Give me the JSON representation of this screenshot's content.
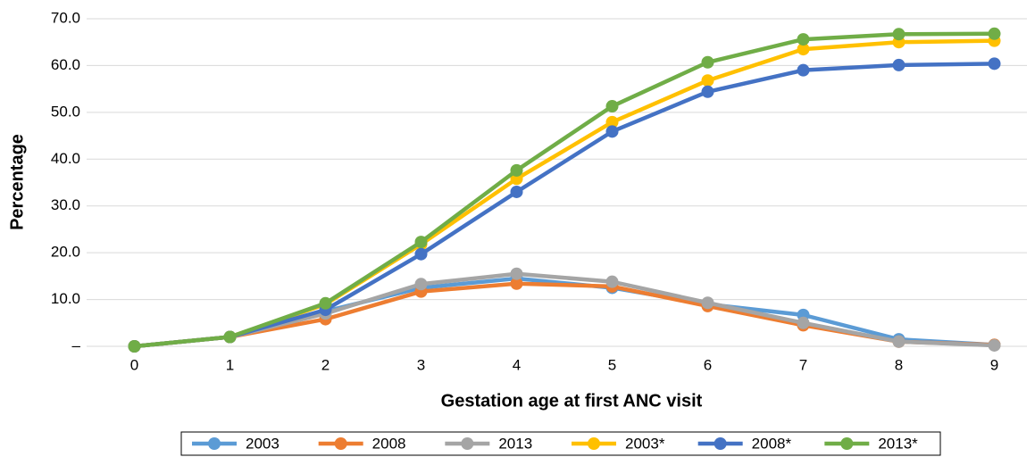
{
  "chart_data": {
    "type": "line",
    "x_label": "Gestation age at first ANC visit",
    "y_label": "Percentage",
    "categories": [
      "0",
      "1",
      "2",
      "3",
      "4",
      "5",
      "6",
      "7",
      "8",
      "9"
    ],
    "series": [
      {
        "name": "2003",
        "color": "#5b9bd5",
        "values": [
          0,
          2.0,
          7.5,
          12.5,
          14.5,
          12.5,
          9.0,
          6.7,
          1.5,
          0.3
        ]
      },
      {
        "name": "2008",
        "color": "#ed7d31",
        "values": [
          0,
          2.0,
          5.8,
          11.7,
          13.4,
          12.8,
          8.6,
          4.5,
          1.0,
          0.3
        ]
      },
      {
        "name": "2013",
        "color": "#a5a5a5",
        "values": [
          0,
          2.0,
          7.0,
          13.3,
          15.5,
          13.8,
          9.3,
          5.0,
          1.0,
          0.2
        ]
      },
      {
        "name": "2003*",
        "color": "#ffc000",
        "values": [
          0,
          2.0,
          9.0,
          21.8,
          35.8,
          47.9,
          56.8,
          63.5,
          65.0,
          65.3
        ]
      },
      {
        "name": "2008*",
        "color": "#4472c4",
        "values": [
          0,
          2.0,
          7.8,
          19.7,
          33.0,
          45.9,
          54.4,
          59.0,
          60.1,
          60.4
        ]
      },
      {
        "name": "2013*",
        "color": "#70ad47",
        "values": [
          0,
          2.0,
          9.2,
          22.3,
          37.6,
          51.3,
          60.7,
          65.6,
          66.7,
          66.8
        ]
      }
    ],
    "ylim": [
      0,
      70
    ],
    "yticks": [
      {
        "value": 0,
        "label": "–"
      },
      {
        "value": 10,
        "label": "10.0"
      },
      {
        "value": 20,
        "label": "20.0"
      },
      {
        "value": 30,
        "label": "30.0"
      },
      {
        "value": 40,
        "label": "40.0"
      },
      {
        "value": 50,
        "label": "50.0"
      },
      {
        "value": 60,
        "label": "60.0"
      },
      {
        "value": 70,
        "label": "70.0"
      }
    ],
    "grid": true,
    "legend": "bottom"
  }
}
